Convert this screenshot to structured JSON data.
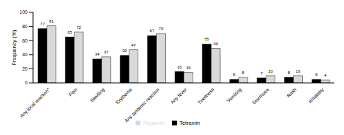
{
  "chart_data": {
    "type": "bar",
    "y_label": "Frequency (%)",
    "categories": [
      "Any local reaction*",
      "Pain",
      "Swelling",
      "Erythema",
      "Any systemic reaction",
      "Any fever",
      "Tiredness",
      "Vomiting",
      "Diarrhoea",
      "Rash",
      "Irritability"
    ],
    "series": [
      {
        "name": "Tetraxim",
        "color": "#000000",
        "values": [
          77,
          65,
          34,
          39,
          67,
          16,
          55,
          5,
          7,
          8,
          5
        ]
      },
      {
        "name": "Repevax",
        "color": "#d9d9d9",
        "values": [
          81,
          72,
          37,
          47,
          70,
          15,
          49,
          8,
          10,
          10,
          4
        ]
      }
    ],
    "ylim": [
      0,
      100
    ],
    "yticks": [
      0,
      20,
      40,
      60,
      80,
      100
    ],
    "grid": false,
    "legend": "bottom",
    "data_labels": true
  }
}
